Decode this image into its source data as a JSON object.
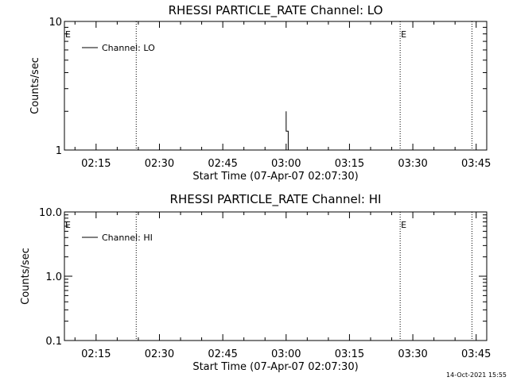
{
  "chart_data": [
    {
      "type": "line",
      "title": "RHESSI PARTICLE_RATE Channel: LO",
      "xlabel": "Start Time (07-Apr-07 02:07:30)",
      "ylabel": "Counts/sec",
      "yscale": "log",
      "ylim": [
        1,
        10
      ],
      "yticks": [
        {
          "value": 1,
          "label": "1"
        },
        {
          "value": 10,
          "label": "10"
        }
      ],
      "xlim": [
        "02:07:30",
        "03:47:30"
      ],
      "xticks": [
        "02:15",
        "02:30",
        "02:45",
        "03:00",
        "03:15",
        "03:30",
        "03:45"
      ],
      "series": [
        {
          "name": "Channel: LO",
          "x": [
            "03:00:00",
            "03:00:00",
            "03:00:30",
            "03:00:30"
          ],
          "y": [
            2.0,
            1.4,
            1.4,
            1.0
          ]
        }
      ],
      "event_lines": [
        "02:24:30",
        "03:27:00",
        "03:44:00"
      ],
      "event_markers": [
        {
          "label": "E",
          "x": "02:07:30"
        },
        {
          "label": "E",
          "x": "03:27:00"
        }
      ],
      "legend_position": "top-left"
    },
    {
      "type": "line",
      "title": "RHESSI PARTICLE_RATE Channel: HI",
      "xlabel": "Start Time (07-Apr-07 02:07:30)",
      "ylabel": "Counts/sec",
      "yscale": "log",
      "ylim": [
        0.1,
        10
      ],
      "yticks": [
        {
          "value": 0.1,
          "label": "0.1"
        },
        {
          "value": 1,
          "label": "1.0"
        },
        {
          "value": 10,
          "label": "10.0"
        }
      ],
      "xlim": [
        "02:07:30",
        "03:47:30"
      ],
      "xticks": [
        "02:15",
        "02:30",
        "02:45",
        "03:00",
        "03:15",
        "03:30",
        "03:45"
      ],
      "series": [
        {
          "name": "Channel: HI",
          "x": [],
          "y": []
        }
      ],
      "event_lines": [
        "02:24:30",
        "03:27:00",
        "03:44:00"
      ],
      "event_markers": [
        {
          "label": "E",
          "x": "02:07:30"
        },
        {
          "label": "E",
          "x": "03:27:00"
        }
      ],
      "legend_position": "top-left"
    }
  ],
  "footer": {
    "timestamp": "14-Oct-2021 15:55"
  }
}
